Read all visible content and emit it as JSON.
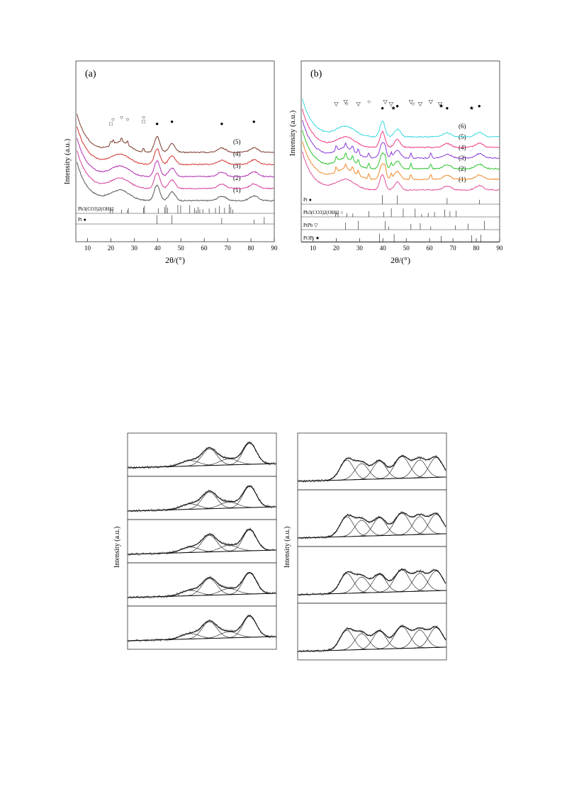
{
  "chart_data": [
    {
      "panel": "(a)",
      "type": "line",
      "xlabel": "2θ/(°)",
      "ylabel": "Intensity (a.u.)",
      "xlim": [
        5,
        90
      ],
      "x_ticks": [
        10,
        20,
        30,
        40,
        50,
        60,
        70,
        80,
        90
      ],
      "series": [
        {
          "name": "(1)",
          "color": "#555555",
          "offset": 0
        },
        {
          "name": "(2)",
          "color": "#d23c9a",
          "offset": 1
        },
        {
          "name": "(3)",
          "color": "#b12fae",
          "offset": 2
        },
        {
          "name": "(4)",
          "color": "#d2322d",
          "offset": 3
        },
        {
          "name": "(5)",
          "color": "#7a3a2a",
          "offset": 4
        }
      ],
      "peaks": [
        {
          "x": 39.8,
          "h": 1.0,
          "w": 1.2
        },
        {
          "x": 46.2,
          "h": 0.55,
          "w": 1.4
        },
        {
          "x": 67.5,
          "h": 0.28,
          "w": 1.8
        },
        {
          "x": 81.3,
          "h": 0.3,
          "w": 1.8
        }
      ],
      "markers": [
        {
          "symbol": "●",
          "x": [
            39.8,
            46.2,
            67.5,
            81.3
          ]
        },
        {
          "symbol": "○",
          "x": [
            20.9,
            24.6,
            27.1,
            34.0
          ]
        },
        {
          "symbol": "□",
          "x": [
            20.0,
            34.0
          ]
        }
      ],
      "references": [
        {
          "label": "Pb3(CO3)2(OH)2",
          "symbol": "",
          "lines": [
            19.8,
            20.8,
            24.6,
            27.1,
            27.5,
            34.0,
            34.4,
            40.3,
            43.1,
            43.6,
            44.3,
            48.7,
            49.9,
            53.8,
            55.8,
            56.6,
            57.3,
            58.1,
            59.4,
            62.1,
            64.8,
            66.5,
            68.7,
            70.7,
            71.4,
            72.2
          ]
        },
        {
          "label": "Pt",
          "symbol": "●",
          "lines": [
            39.8,
            46.2,
            67.5,
            81.3,
            85.7
          ]
        }
      ]
    },
    {
      "panel": "(b)",
      "type": "line",
      "xlabel": "2θ/(°)",
      "ylabel": "Intensity (a.u.)",
      "xlim": [
        5,
        90
      ],
      "x_ticks": [
        10,
        20,
        30,
        40,
        50,
        60,
        70,
        80,
        90
      ],
      "series": [
        {
          "name": "(1)",
          "color": "#e0509a",
          "offset": 0
        },
        {
          "name": "(2)",
          "color": "#f0892a",
          "offset": 1
        },
        {
          "name": "(3)",
          "color": "#2ec42e",
          "offset": 2
        },
        {
          "name": "(4)",
          "color": "#8a3ad8",
          "offset": 3
        },
        {
          "name": "(5)",
          "color": "#ee3c86",
          "offset": 4
        },
        {
          "name": "(6)",
          "color": "#3ad8e0",
          "offset": 5
        }
      ],
      "markers": [
        {
          "symbol": "●",
          "x": [
            39.8,
            46.2,
            67.5,
            81.3
          ]
        },
        {
          "symbol": "▽",
          "x": [
            20.0,
            24.0,
            29.5,
            41.0,
            43.5,
            52.0,
            56.0,
            60.5,
            64.5
          ]
        },
        {
          "symbol": "★",
          "x": [
            44.5,
            65.0,
            78.0
          ]
        },
        {
          "symbol": "○",
          "x": [
            24.5,
            34.0,
            53.0
          ]
        }
      ],
      "references": [
        {
          "label": "Pt",
          "symbol": "●",
          "lines": [
            39.8,
            46.2,
            67.5,
            81.3
          ]
        },
        {
          "label": "Pb3(CO3)2(OH)2",
          "symbol": "○",
          "lines": [
            19.8,
            20.8,
            24.6,
            27.1,
            34.0,
            40.3,
            43.6,
            48.7,
            53.8,
            56.6,
            59.4,
            62.1,
            66.5,
            68.7,
            71.4
          ]
        },
        {
          "label": "PtPb",
          "symbol": "▽",
          "lines": [
            24.0,
            29.5,
            41.0,
            42.5,
            52.0,
            56.0,
            60.5,
            71.0,
            76.5,
            83.5
          ]
        },
        {
          "label": "Pt3Pt",
          "symbol": "★",
          "lines": [
            38.5,
            44.8,
            65.0,
            78.0,
            82.0
          ]
        }
      ]
    },
    {
      "panel": "XPS-left",
      "type": "line",
      "ylabel": "Intensity (a.u.)",
      "stack": 5
    },
    {
      "panel": "XPS-right",
      "type": "line",
      "ylabel": "Intensity (a.u.)",
      "stack": 4
    }
  ]
}
